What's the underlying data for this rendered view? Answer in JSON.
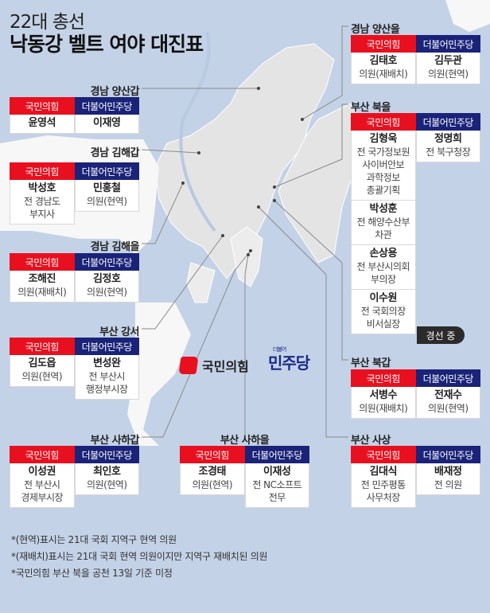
{
  "title": {
    "line1": "22대 총선",
    "line2": "낙동강 벨트 여야 대진표"
  },
  "parties": {
    "ppp": "국민의힘",
    "dem": "더불어민주당"
  },
  "colors": {
    "ppp": "#e8101f",
    "dem": "#1a2378",
    "sea": "#c4d2e7",
    "land": "#e4e4e4"
  },
  "logos": {
    "ppp": "국민의힘",
    "dem": "민주당",
    "dem_small": "더불어"
  },
  "cards": [
    {
      "district": "경남 양산갑",
      "ppp": [
        {
          "name": "윤영석",
          "lines": []
        }
      ],
      "dem": [
        {
          "name": "이재영",
          "lines": []
        }
      ]
    },
    {
      "district": "경남 김해갑",
      "ppp": [
        {
          "name": "박성호",
          "lines": [
            "전 경남도",
            "부지사"
          ]
        }
      ],
      "dem": [
        {
          "name": "민홍철",
          "lines": [
            "의원(현역)"
          ]
        }
      ]
    },
    {
      "district": "경남 김해을",
      "ppp": [
        {
          "name": "조해진",
          "lines": [
            "의원(재배치)"
          ]
        }
      ],
      "dem": [
        {
          "name": "김정호",
          "lines": [
            "의원(현역)"
          ]
        }
      ]
    },
    {
      "district": "부산 강서",
      "ppp": [
        {
          "name": "김도읍",
          "lines": [
            "의원(현역)"
          ]
        }
      ],
      "dem": [
        {
          "name": "변성완",
          "lines": [
            "전 부산시",
            "행정부시장"
          ]
        }
      ]
    },
    {
      "district": "부산 사하갑",
      "ppp": [
        {
          "name": "이성권",
          "lines": [
            "전 부산시",
            "경제부시장"
          ]
        }
      ],
      "dem": [
        {
          "name": "최인호",
          "lines": [
            "의원(현역)"
          ]
        }
      ]
    },
    {
      "district": "부산 사하을",
      "ppp": [
        {
          "name": "조경태",
          "lines": [
            "의원(현역)"
          ]
        }
      ],
      "dem": [
        {
          "name": "이재성",
          "lines": [
            "전 NC소프트",
            "전무"
          ]
        }
      ]
    },
    {
      "district": "경남 양산을",
      "ppp": [
        {
          "name": "김태호",
          "lines": [
            "의원(재배치)"
          ]
        }
      ],
      "dem": [
        {
          "name": "김두관",
          "lines": [
            "의원(현역)"
          ]
        }
      ]
    },
    {
      "district": "부산 북을",
      "ppp": [
        {
          "name": "김형욱",
          "lines": [
            "전 국가정보원",
            "사이버안보",
            "과학정보",
            "총괄기획"
          ]
        },
        {
          "name": "박성훈",
          "lines": [
            "전 해양수산부",
            "차관"
          ]
        },
        {
          "name": "손상용",
          "lines": [
            "전 부산시의회",
            "부의장"
          ]
        },
        {
          "name": "이수원",
          "lines": [
            "전 국회의장",
            "비서실장"
          ]
        }
      ],
      "dem": [
        {
          "name": "정명희",
          "lines": [
            "전 북구청장"
          ]
        }
      ],
      "status": "경선 중"
    },
    {
      "district": "부산 북갑",
      "ppp": [
        {
          "name": "서병수",
          "lines": [
            "의원(재배치)"
          ]
        }
      ],
      "dem": [
        {
          "name": "전재수",
          "lines": [
            "의원(현역)"
          ]
        }
      ]
    },
    {
      "district": "부산 사상",
      "ppp": [
        {
          "name": "김대식",
          "lines": [
            "전 민주평통",
            "사무처장"
          ]
        }
      ],
      "dem": [
        {
          "name": "배재정",
          "lines": [
            "전 의원"
          ]
        }
      ]
    }
  ],
  "notes": [
    "*(현역)표시는 21대 국회 지역구 현역 의원",
    "*(재배치)표시는 21대 국회 현역 의원이지만 지역구 재배치된 의원",
    "*국민의힘 부산 북을 공천 13일 기준 미정"
  ]
}
